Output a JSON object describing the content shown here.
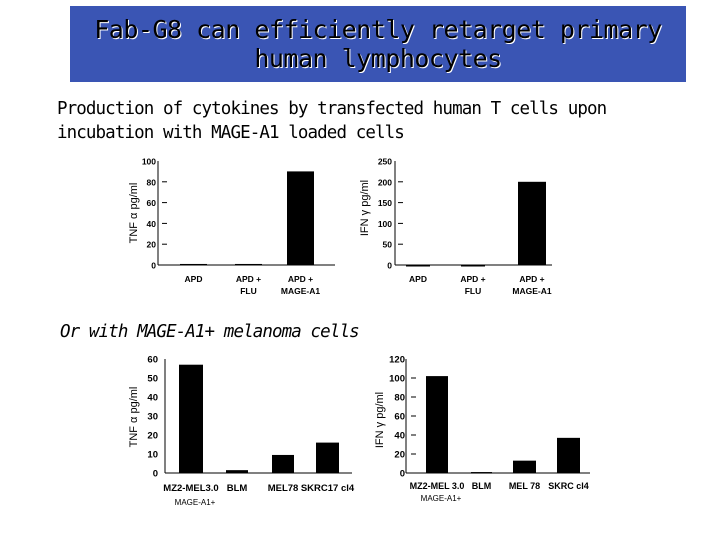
{
  "header": {
    "title_line1": "Fab-G8 can efficiently retarget primary",
    "title_line2": "human lymphocytes",
    "banner_color": "#3a55b4"
  },
  "section1": {
    "line1": "Production of cytokines by transfected human T cells upon",
    "line2": "incubation with MAGE-A1 loaded cells"
  },
  "section2": {
    "label": "Or with MAGE-A1+ melanoma cells"
  },
  "chart_data": [
    {
      "id": "c1",
      "type": "bar",
      "ylabel": "TNF α pg/ml",
      "ylim": [
        0,
        100
      ],
      "yticks": [
        0,
        20,
        40,
        60,
        80,
        100
      ],
      "categories": [
        "APD",
        "APD + FLU",
        "APD + MAGE-A1"
      ],
      "values": [
        1,
        1,
        90
      ],
      "bar_color": "#000000"
    },
    {
      "id": "c2",
      "type": "bar",
      "ylabel": "IFN γ pg/ml",
      "ylim": [
        0,
        250
      ],
      "yticks": [
        0,
        50,
        100,
        150,
        200,
        250
      ],
      "categories": [
        "APD",
        "APD + FLU",
        "APD + MAGE-A1"
      ],
      "values": [
        0,
        0,
        200
      ],
      "bar_color": "#000000"
    },
    {
      "id": "c3",
      "type": "bar",
      "ylabel": "TNF α pg/ml",
      "ylim": [
        0,
        60
      ],
      "yticks": [
        0,
        10,
        20,
        30,
        40,
        50,
        60
      ],
      "categories": [
        "MZ2-MEL3.0",
        "BLM",
        "MEL78",
        "SKRC17 cl4"
      ],
      "sublabels": [
        "MAGE-A1+",
        "",
        "",
        ""
      ],
      "values": [
        57,
        1.5,
        9.5,
        16
      ],
      "bar_color": "#000000"
    },
    {
      "id": "c4",
      "type": "bar",
      "ylabel": "IFN γ pg/ml",
      "ylim": [
        0,
        120
      ],
      "yticks": [
        0,
        20,
        40,
        60,
        80,
        100,
        120
      ],
      "categories": [
        "MZ2-MEL 3.0",
        "BLM",
        "MEL 78",
        "SKRC cl4"
      ],
      "sublabels": [
        "MAGE-A1+",
        "",
        "",
        ""
      ],
      "values": [
        102,
        1,
        13,
        37
      ],
      "bar_color": "#000000"
    }
  ]
}
